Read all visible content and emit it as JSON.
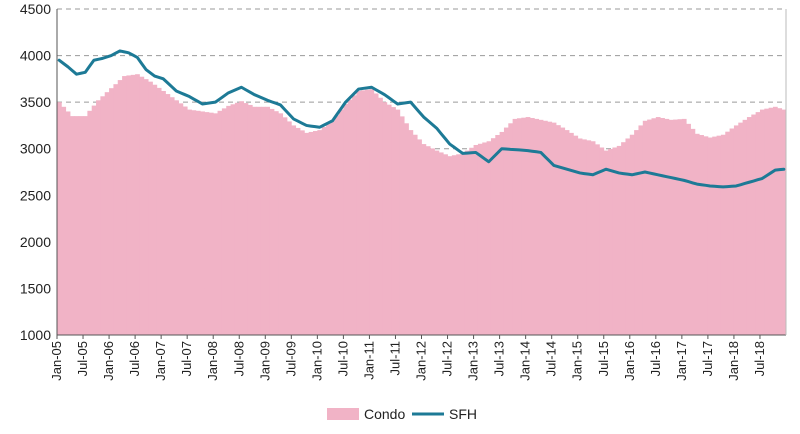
{
  "chart_data": {
    "type": "area",
    "x_start": "Jan-05",
    "x_end": "Dec-18",
    "frequency": "monthly",
    "ylim": [
      1000,
      4500
    ],
    "yticks": [
      1000,
      1500,
      2000,
      2500,
      3000,
      3500,
      4000,
      4500
    ],
    "xtick_labels": [
      "Jan-05",
      "Jul-05",
      "Jan-06",
      "Jul-06",
      "Jan-07",
      "Jul-07",
      "Jan-08",
      "Jul-08",
      "Jan-09",
      "Jul-09",
      "Jan-10",
      "Jul-10",
      "Jan-11",
      "Jul-11",
      "Jan-12",
      "Jul-12",
      "Jan-13",
      "Jul-13",
      "Jan-14",
      "Jul-14",
      "Jan-15",
      "Jul-15",
      "Jan-16",
      "Jul-16",
      "Jan-17",
      "Jul-17",
      "Jan-18",
      "Jul-18"
    ],
    "grid": "horizontal dashed",
    "legend_position": "bottom-center",
    "series": [
      {
        "name": "Condo",
        "type": "area",
        "color": "#f1b3c6",
        "anchors": [
          [
            "Jan-05",
            3500
          ],
          [
            "Apr-05",
            3350
          ],
          [
            "Jul-05",
            3350
          ],
          [
            "Oct-05",
            3520
          ],
          [
            "Jan-06",
            3650
          ],
          [
            "Apr-06",
            3780
          ],
          [
            "Jul-06",
            3800
          ],
          [
            "Oct-06",
            3720
          ],
          [
            "Jan-07",
            3620
          ],
          [
            "Jul-07",
            3420
          ],
          [
            "Jan-08",
            3380
          ],
          [
            "Apr-08",
            3460
          ],
          [
            "Jul-08",
            3510
          ],
          [
            "Oct-08",
            3450
          ],
          [
            "Jan-09",
            3450
          ],
          [
            "Apr-09",
            3380
          ],
          [
            "Jul-09",
            3250
          ],
          [
            "Oct-09",
            3170
          ],
          [
            "Jan-10",
            3200
          ],
          [
            "Apr-10",
            3300
          ],
          [
            "Jul-10",
            3480
          ],
          [
            "Oct-10",
            3620
          ],
          [
            "Jan-11",
            3640
          ],
          [
            "Apr-11",
            3500
          ],
          [
            "Jul-11",
            3420
          ],
          [
            "Oct-11",
            3200
          ],
          [
            "Jan-12",
            3050
          ],
          [
            "Apr-12",
            2980
          ],
          [
            "Jul-12",
            2920
          ],
          [
            "Oct-12",
            2950
          ],
          [
            "Jan-13",
            3040
          ],
          [
            "Apr-13",
            3080
          ],
          [
            "Jul-13",
            3180
          ],
          [
            "Oct-13",
            3320
          ],
          [
            "Jan-14",
            3340
          ],
          [
            "Apr-14",
            3310
          ],
          [
            "Jul-14",
            3280
          ],
          [
            "Oct-14",
            3200
          ],
          [
            "Jan-15",
            3110
          ],
          [
            "Apr-15",
            3080
          ],
          [
            "Jul-15",
            2980
          ],
          [
            "Oct-15",
            3030
          ],
          [
            "Jan-16",
            3150
          ],
          [
            "Apr-16",
            3300
          ],
          [
            "Jul-16",
            3340
          ],
          [
            "Oct-16",
            3310
          ],
          [
            "Jan-17",
            3320
          ],
          [
            "Apr-17",
            3160
          ],
          [
            "Jul-17",
            3120
          ],
          [
            "Oct-17",
            3150
          ],
          [
            "Jan-18",
            3250
          ],
          [
            "Apr-18",
            3340
          ],
          [
            "Jul-18",
            3420
          ],
          [
            "Oct-18",
            3450
          ],
          [
            "Dec-18",
            3420
          ]
        ]
      },
      {
        "name": "SFH",
        "type": "line",
        "color": "#1d7a96",
        "anchors": [
          [
            "Jan-05",
            3950
          ],
          [
            "Mar-05",
            3880
          ],
          [
            "May-05",
            3800
          ],
          [
            "Jul-05",
            3820
          ],
          [
            "Sep-05",
            3950
          ],
          [
            "Nov-05",
            3970
          ],
          [
            "Jan-06",
            4000
          ],
          [
            "Mar-06",
            4050
          ],
          [
            "May-06",
            4030
          ],
          [
            "Jul-06",
            3980
          ],
          [
            "Sep-06",
            3850
          ],
          [
            "Nov-06",
            3780
          ],
          [
            "Jan-07",
            3750
          ],
          [
            "Apr-07",
            3620
          ],
          [
            "Jul-07",
            3560
          ],
          [
            "Oct-07",
            3480
          ],
          [
            "Jan-08",
            3500
          ],
          [
            "Apr-08",
            3600
          ],
          [
            "Jul-08",
            3660
          ],
          [
            "Oct-08",
            3580
          ],
          [
            "Jan-09",
            3520
          ],
          [
            "Apr-09",
            3470
          ],
          [
            "Jul-09",
            3320
          ],
          [
            "Oct-09",
            3250
          ],
          [
            "Jan-10",
            3230
          ],
          [
            "Apr-10",
            3300
          ],
          [
            "Jul-10",
            3500
          ],
          [
            "Oct-10",
            3640
          ],
          [
            "Jan-11",
            3660
          ],
          [
            "Apr-11",
            3580
          ],
          [
            "Jul-11",
            3480
          ],
          [
            "Oct-11",
            3500
          ],
          [
            "Jan-12",
            3340
          ],
          [
            "Apr-12",
            3220
          ],
          [
            "Jul-12",
            3050
          ],
          [
            "Oct-12",
            2950
          ],
          [
            "Jan-13",
            2960
          ],
          [
            "Apr-13",
            2860
          ],
          [
            "Jul-13",
            3000
          ],
          [
            "Oct-13",
            2990
          ],
          [
            "Jan-14",
            2980
          ],
          [
            "Apr-14",
            2960
          ],
          [
            "Jul-14",
            2820
          ],
          [
            "Oct-14",
            2780
          ],
          [
            "Jan-15",
            2740
          ],
          [
            "Apr-15",
            2720
          ],
          [
            "Jul-15",
            2780
          ],
          [
            "Oct-15",
            2740
          ],
          [
            "Jan-16",
            2720
          ],
          [
            "Apr-16",
            2750
          ],
          [
            "Jul-16",
            2720
          ],
          [
            "Oct-16",
            2690
          ],
          [
            "Jan-17",
            2660
          ],
          [
            "Apr-17",
            2620
          ],
          [
            "Jul-17",
            2600
          ],
          [
            "Oct-17",
            2590
          ],
          [
            "Jan-18",
            2600
          ],
          [
            "Apr-18",
            2640
          ],
          [
            "Jul-18",
            2680
          ],
          [
            "Oct-18",
            2770
          ],
          [
            "Dec-18",
            2780
          ]
        ]
      }
    ]
  }
}
